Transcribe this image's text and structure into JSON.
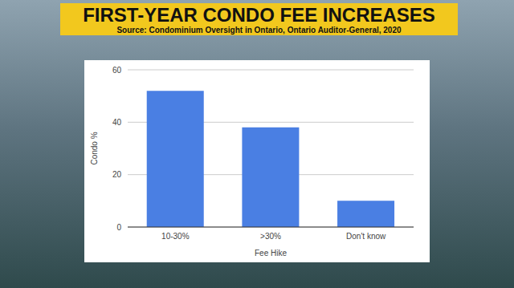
{
  "chart_data": {
    "type": "bar",
    "title": "FIRST-YEAR CONDO FEE INCREASES",
    "subtitle": "Source: Condominium Oversight in Ontario, Ontario Auditor-General, 2020",
    "x_label": "Fee Hike",
    "y_label": "Condo %",
    "categories": [
      "10-30%",
      ">30%",
      "Don't know"
    ],
    "values": [
      52,
      38,
      10
    ],
    "color": "#4a7fe3",
    "ylim": [
      0,
      60
    ],
    "yticks": [
      0,
      20,
      40,
      60
    ],
    "grid": true
  }
}
